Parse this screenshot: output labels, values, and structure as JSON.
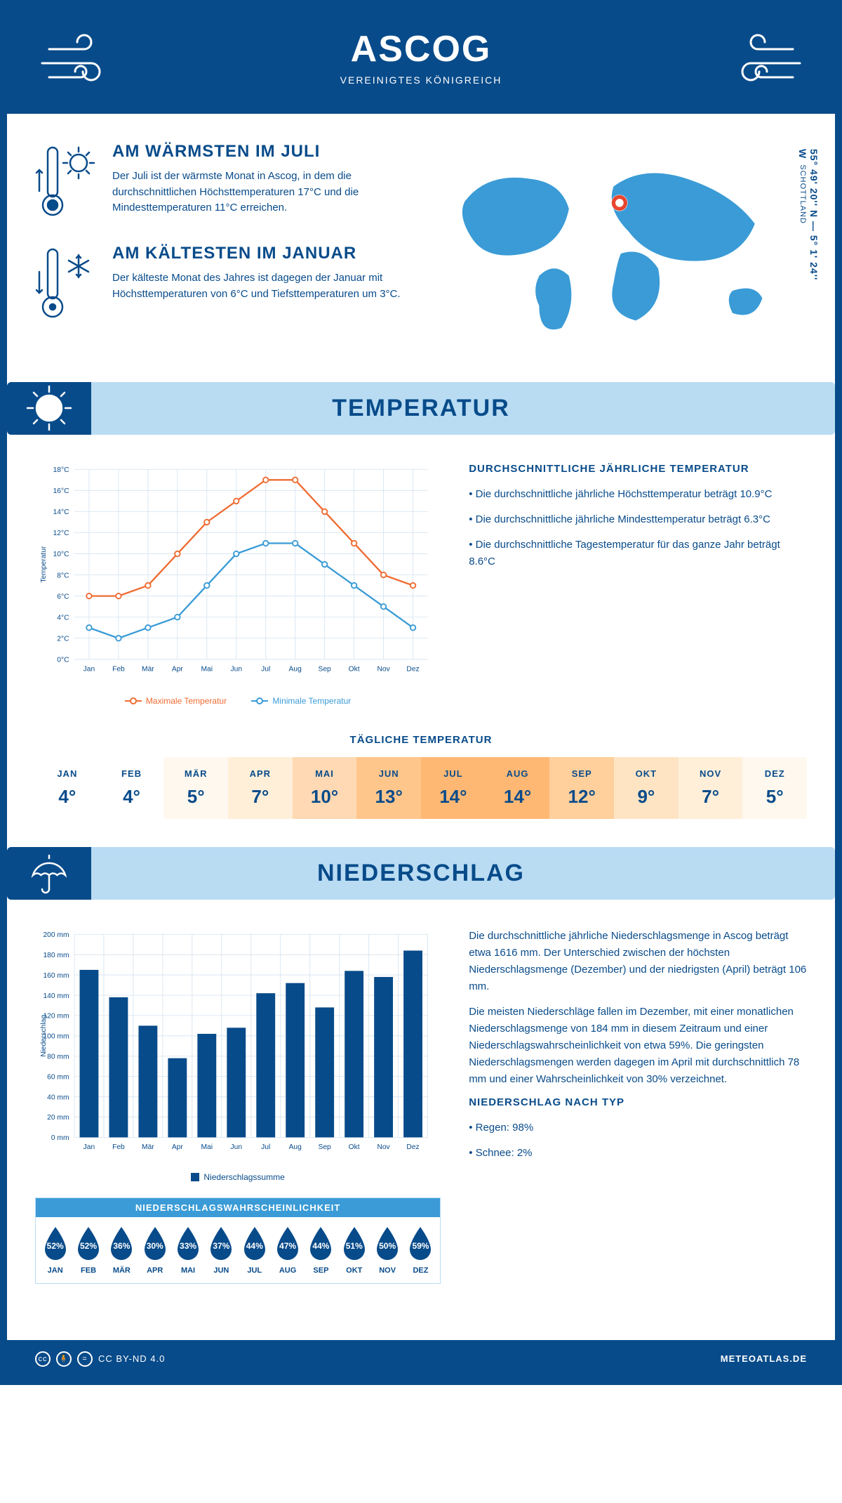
{
  "header": {
    "title": "ASCOG",
    "subtitle": "VEREINIGTES KÖNIGREICH"
  },
  "coords": {
    "line1": "55° 49' 20'' N — 5° 1' 24'' W",
    "line2": "SCHOTTLAND"
  },
  "warm": {
    "title": "AM WÄRMSTEN IM JULI",
    "body": "Der Juli ist der wärmste Monat in Ascog, in dem die durchschnittlichen Höchsttemperaturen 17°C und die Mindesttemperaturen 11°C erreichen."
  },
  "cold": {
    "title": "AM KÄLTESTEN IM JANUAR",
    "body": "Der kälteste Monat des Jahres ist dagegen der Januar mit Höchsttemperaturen von 6°C und Tiefsttemperaturen um 3°C."
  },
  "temp_section": {
    "title": "TEMPERATUR"
  },
  "temp_chart": {
    "months": [
      "Jan",
      "Feb",
      "Mär",
      "Apr",
      "Mai",
      "Jun",
      "Jul",
      "Aug",
      "Sep",
      "Okt",
      "Nov",
      "Dez"
    ],
    "max": [
      6,
      6,
      7,
      10,
      13,
      15,
      17,
      17,
      14,
      11,
      8,
      7
    ],
    "min": [
      3,
      2,
      3,
      4,
      7,
      10,
      11,
      11,
      9,
      7,
      5,
      3
    ],
    "max_color": "#ef6c33",
    "min_color": "#3a9bd6",
    "grid_color": "#d9e6f1",
    "axis_color": "#084b8a",
    "ylim": [
      0,
      18
    ],
    "ytick_step": 2,
    "ylabel": "Temperatur",
    "legend_max": "Maximale Temperatur",
    "legend_min": "Minimale Temperatur"
  },
  "temp_side": {
    "title": "DURCHSCHNITTLICHE JÄHRLICHE TEMPERATUR",
    "items": [
      "Die durchschnittliche jährliche Höchsttemperatur beträgt 10.9°C",
      "Die durchschnittliche jährliche Mindesttemperatur beträgt 6.3°C",
      "Die durchschnittliche Tagestemperatur für das ganze Jahr beträgt 8.6°C"
    ]
  },
  "daily": {
    "title": "TÄGLICHE TEMPERATUR",
    "months": [
      "JAN",
      "FEB",
      "MÄR",
      "APR",
      "MAI",
      "JUN",
      "JUL",
      "AUG",
      "SEP",
      "OKT",
      "NOV",
      "DEZ"
    ],
    "values": [
      "4°",
      "4°",
      "5°",
      "7°",
      "10°",
      "13°",
      "14°",
      "14°",
      "12°",
      "9°",
      "7°",
      "5°"
    ],
    "bg": [
      "#ffffff",
      "#ffffff",
      "#fff8ef",
      "#ffefd9",
      "#ffd9b3",
      "#ffc68c",
      "#ffb873",
      "#ffb873",
      "#ffcf9c",
      "#ffe4c4",
      "#ffefd9",
      "#fff8ef"
    ]
  },
  "precip_section": {
    "title": "NIEDERSCHLAG"
  },
  "precip_chart": {
    "months": [
      "Jan",
      "Feb",
      "Mär",
      "Apr",
      "Mai",
      "Jun",
      "Jul",
      "Aug",
      "Sep",
      "Okt",
      "Nov",
      "Dez"
    ],
    "values": [
      165,
      138,
      110,
      78,
      102,
      108,
      142,
      152,
      128,
      164,
      158,
      184
    ],
    "bar_color": "#084b8a",
    "grid_color": "#d9e6f1",
    "axis_color": "#084b8a",
    "ylim": [
      0,
      200
    ],
    "ytick_step": 20,
    "ylabel": "Niederschlag",
    "legend": "Niederschlagssumme"
  },
  "precip_text": {
    "p1": "Die durchschnittliche jährliche Niederschlagsmenge in Ascog beträgt etwa 1616 mm. Der Unterschied zwischen der höchsten Niederschlagsmenge (Dezember) und der niedrigsten (April) beträgt 106 mm.",
    "p2": "Die meisten Niederschläge fallen im Dezember, mit einer monatlichen Niederschlagsmenge von 184 mm in diesem Zeitraum und einer Niederschlagswahrscheinlichkeit von etwa 59%. Die geringsten Niederschlagsmengen werden dagegen im April mit durchschnittlich 78 mm und einer Wahrscheinlichkeit von 30% verzeichnet.",
    "type_title": "NIEDERSCHLAG NACH TYP",
    "type_items": [
      "Regen: 98%",
      "Schnee: 2%"
    ]
  },
  "prob": {
    "title": "NIEDERSCHLAGSWAHRSCHEINLICHKEIT",
    "months": [
      "JAN",
      "FEB",
      "MÄR",
      "APR",
      "MAI",
      "JUN",
      "JUL",
      "AUG",
      "SEP",
      "OKT",
      "NOV",
      "DEZ"
    ],
    "values": [
      "52%",
      "52%",
      "36%",
      "30%",
      "33%",
      "37%",
      "44%",
      "47%",
      "44%",
      "51%",
      "50%",
      "59%"
    ],
    "drop_color": "#084b8a"
  },
  "footer": {
    "license": "CC BY-ND 4.0",
    "site": "METEOATLAS.DE"
  },
  "colors": {
    "primary": "#084b8a",
    "light": "#b9dcf3",
    "accent": "#3a9bd6"
  }
}
